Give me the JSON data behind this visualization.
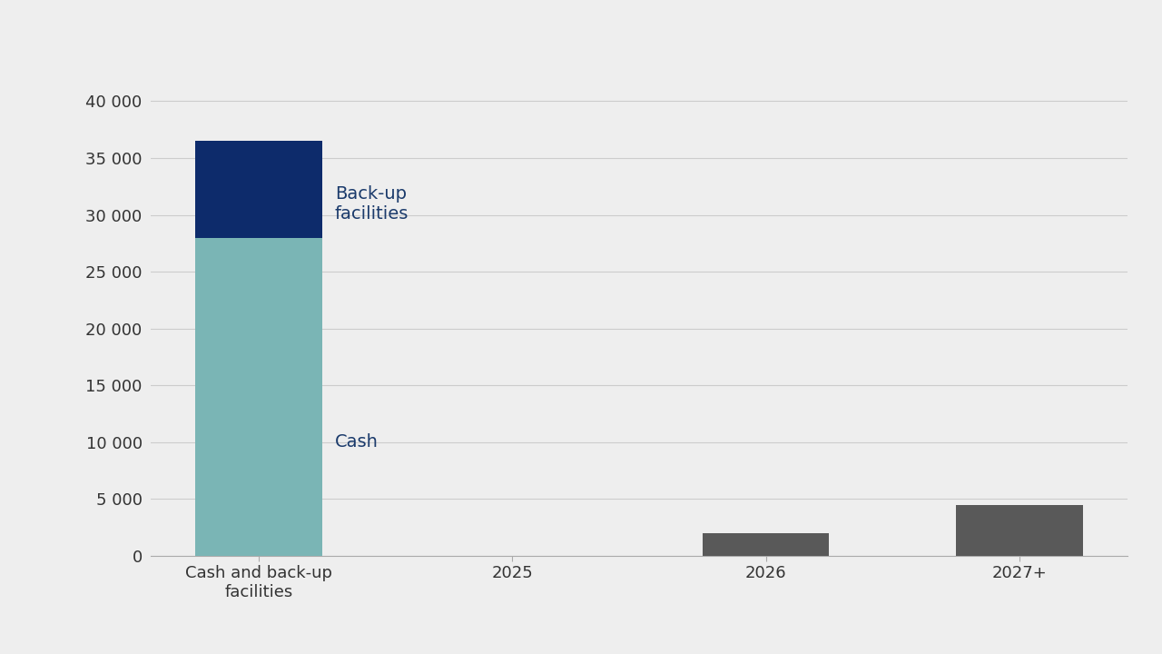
{
  "categories": [
    "Cash and back-up\nfacilities",
    "2025",
    "2026",
    "2027+"
  ],
  "cash_value": [
    28000,
    0,
    0,
    0
  ],
  "backup_value": [
    8500,
    0,
    0,
    0
  ],
  "debt_value": [
    0,
    0,
    2000,
    4500
  ],
  "cash_color": "#7ab5b5",
  "backup_color": "#0d2b6b",
  "debt_color": "#595959",
  "background_color": "#eeeeee",
  "ylim": [
    0,
    42000
  ],
  "yticks": [
    0,
    5000,
    10000,
    15000,
    20000,
    25000,
    30000,
    35000,
    40000
  ],
  "ytick_labels": [
    "0",
    "5 000",
    "10 000",
    "15 000",
    "20 000",
    "25 000",
    "30 000",
    "35 000",
    "40 000"
  ],
  "annotation_cash": "Cash",
  "annotation_backup": "Back-up\nfacilities",
  "annotation_color": "#1a3a6b",
  "annotation_fontsize": 14,
  "bar_width": 0.5,
  "grid_color": "#cccccc",
  "tick_fontsize": 13,
  "ylabel_fontsize": 13
}
